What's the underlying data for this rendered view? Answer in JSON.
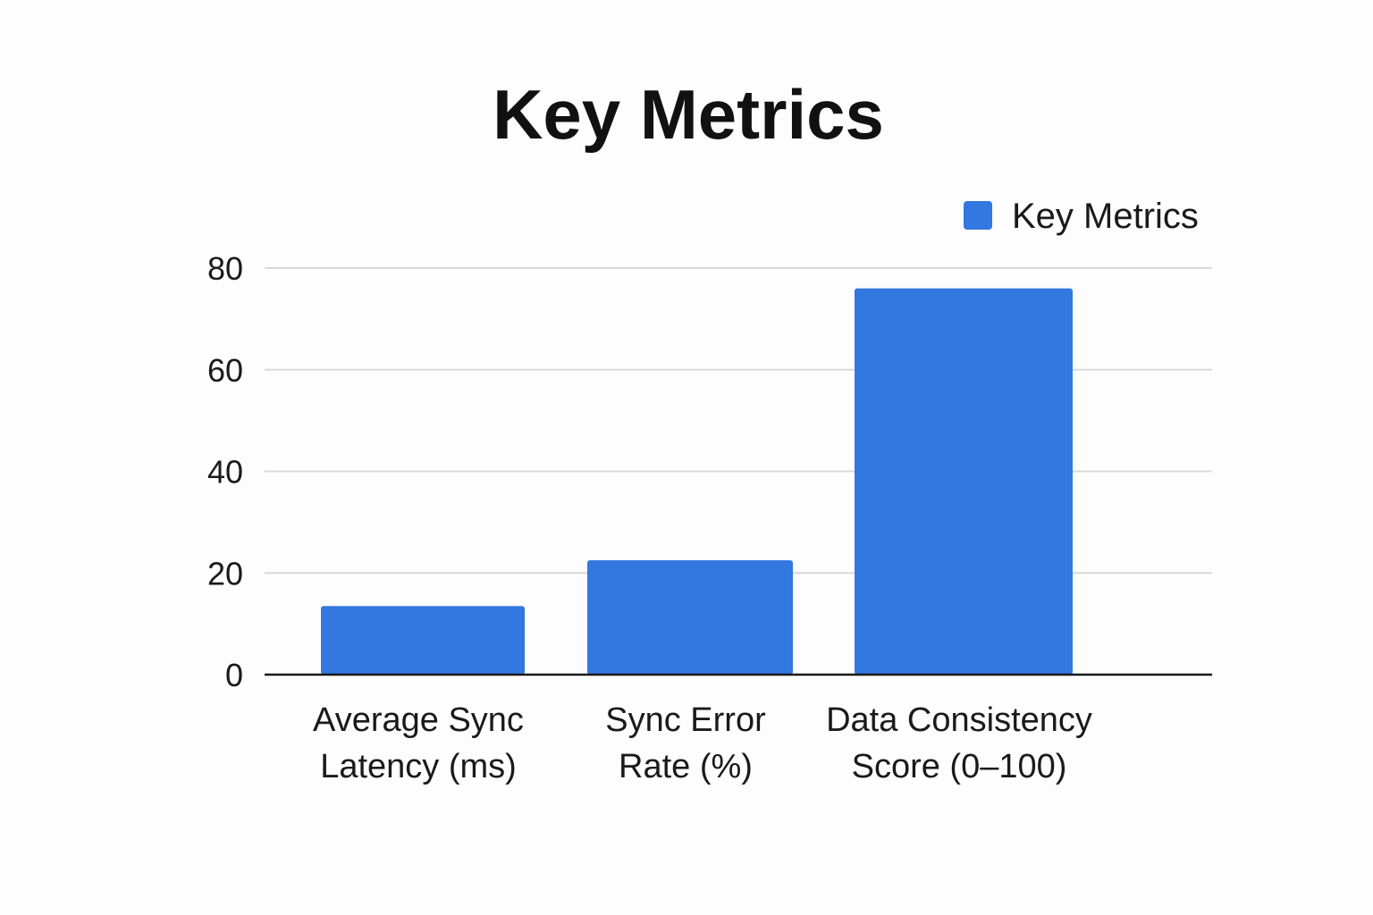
{
  "chart_data": {
    "type": "bar",
    "title": "Key Metrics",
    "xlabel": "",
    "ylabel": "",
    "categories": [
      [
        "Average Sync",
        "Latency (ms)"
      ],
      [
        "Sync Error",
        "Rate (%)"
      ],
      [
        "Data Consistency",
        "Score (0–100)"
      ]
    ],
    "series": [
      {
        "name": "Key Metrics",
        "values": [
          13.5,
          22.5,
          76
        ],
        "color": "#3377e0"
      }
    ],
    "ylim": [
      0,
      80
    ],
    "yticks": [
      0,
      20,
      40,
      60,
      80
    ],
    "grid": true,
    "legend_position": "top-right"
  }
}
